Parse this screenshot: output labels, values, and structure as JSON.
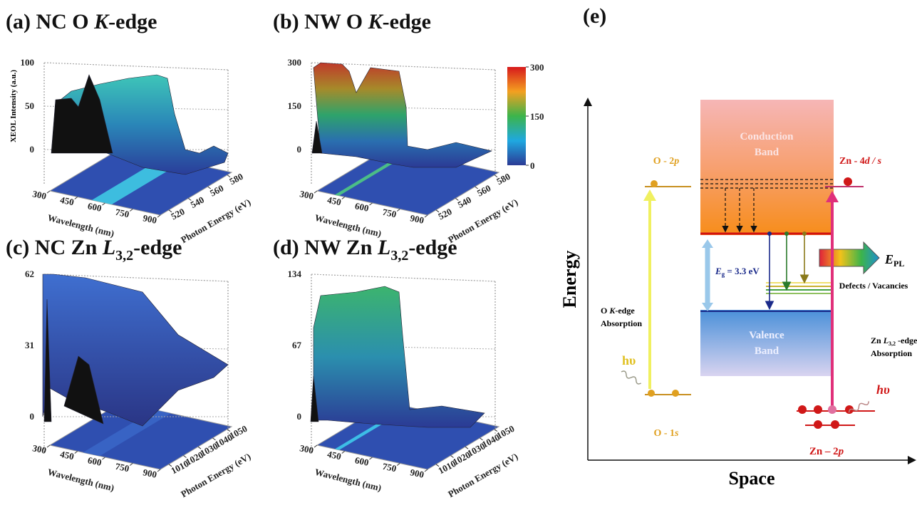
{
  "panels": [
    {
      "title": [
        "(a) NC O ",
        "K",
        "-edge"
      ],
      "z_label": "XEOL Intensity (a.u.)",
      "z_ticks": [
        0,
        50,
        100
      ],
      "wavelength_label": "Wavelength (nm)",
      "wavelength_ticks": [
        300,
        450,
        600,
        750,
        900
      ],
      "energy_label": "Photon Energy (eV)",
      "energy_ticks": [
        520,
        540,
        560,
        580
      ]
    },
    {
      "title": [
        "(b) NW O ",
        "K",
        "-edge"
      ],
      "z_ticks": [
        0,
        150,
        300
      ],
      "colorbar_ticks": [
        0,
        150,
        300
      ],
      "wavelength_label": "Wavelength (nm)",
      "wavelength_ticks": [
        300,
        450,
        600,
        750,
        900
      ],
      "energy_label": "Photon Energy (eV)",
      "energy_ticks": [
        520,
        540,
        560,
        580
      ]
    },
    {
      "title": [
        "(c) NC Zn ",
        "L",
        "3,2",
        "-edge"
      ],
      "z_ticks": [
        0,
        31,
        62
      ],
      "wavelength_label": "Wavelength (nm)",
      "wavelength_ticks": [
        300,
        450,
        600,
        750,
        900
      ],
      "energy_label": "Photon Energy (eV)",
      "energy_ticks": [
        1010,
        1020,
        1030,
        1040,
        1050
      ]
    },
    {
      "title": [
        "(d) NW Zn ",
        "L",
        "3,2",
        "-edge"
      ],
      "z_ticks": [
        0,
        67,
        134
      ],
      "wavelength_label": "Wavelength (nm)",
      "wavelength_ticks": [
        300,
        450,
        600,
        750,
        900
      ],
      "energy_label": "Photon Energy (eV)",
      "energy_ticks": [
        1010,
        1020,
        1030,
        1040,
        1050
      ]
    }
  ],
  "diagram": {
    "label": "(e)",
    "y_axis": "Energy",
    "x_axis": "Space",
    "conduction_band": [
      "Conduction",
      "Band"
    ],
    "valence_band": [
      "Valence",
      "Band"
    ],
    "o_2p": [
      "O - 2",
      "p"
    ],
    "o_1s": [
      "O - 1",
      "s"
    ],
    "zn_4d": [
      "Zn - 4",
      "d / s"
    ],
    "zn_2p": [
      "Zn – 2",
      "p"
    ],
    "band_gap": [
      "E",
      "g",
      " = 3.3 eV"
    ],
    "emission": [
      "E",
      "PL"
    ],
    "defects": "Defects / Vacancies",
    "o_absorption": [
      "O ",
      "K",
      "-edge",
      "Absorption"
    ],
    "zn_absorption": [
      "Zn ",
      "L",
      "3,2",
      " -edge",
      "Absorption"
    ],
    "photon_left": "hυ",
    "photon_right": "hυ"
  }
}
